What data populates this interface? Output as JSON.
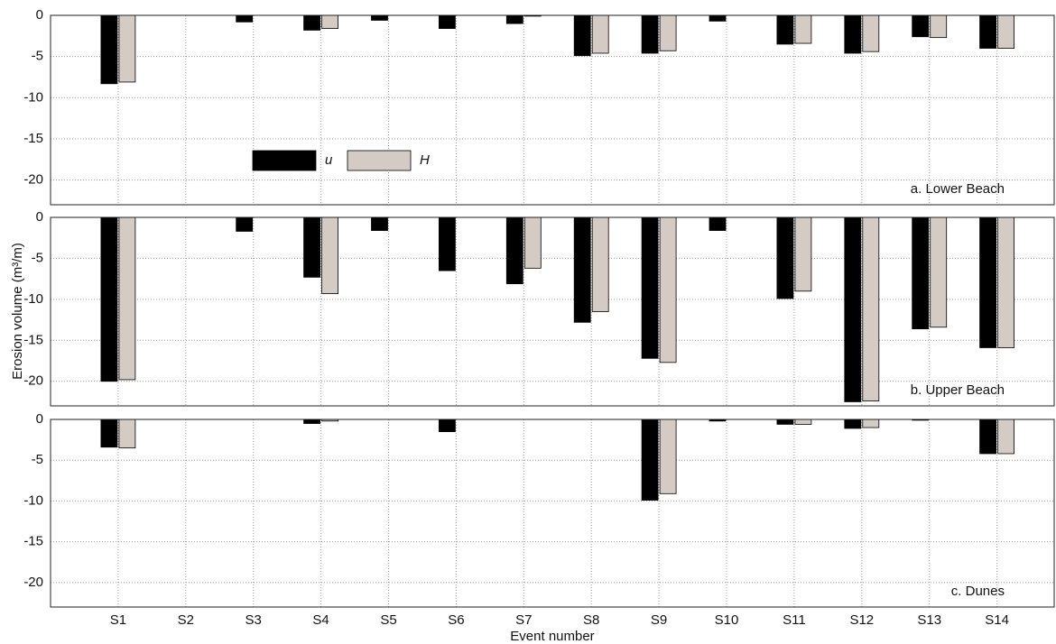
{
  "chart_data": [
    {
      "type": "bar",
      "title": "a. Lower Beach",
      "series": [
        {
          "name": "u",
          "color": "#000000",
          "values": [
            -8.3,
            0,
            -0.8,
            -1.8,
            -0.6,
            -1.6,
            -1.0,
            -4.9,
            -4.6,
            -0.7,
            -3.5,
            -4.6,
            -2.6,
            -4.0
          ]
        },
        {
          "name": "H",
          "color": "#d4ccc4",
          "values": [
            -8.1,
            0,
            0,
            -1.6,
            0,
            0,
            -0.1,
            -4.6,
            -4.3,
            0,
            -3.4,
            -4.4,
            -2.7,
            -4.0
          ]
        }
      ],
      "ylim": [
        -23,
        0
      ],
      "yticks": [
        -20,
        -15,
        -10,
        -5,
        0
      ],
      "grid": true,
      "legend": "center-left"
    },
    {
      "type": "bar",
      "title": "b. Upper Beach",
      "ylabel": "Erosion volume (m³/m)",
      "series": [
        {
          "color": "#000000",
          "values": [
            -20.0,
            0,
            -1.7,
            -7.3,
            -1.6,
            -6.5,
            -8.1,
            -12.8,
            -17.2,
            -1.6,
            -9.9,
            -22.5,
            -13.6,
            -15.9
          ]
        },
        {
          "color": "#d4ccc4",
          "values": [
            -19.8,
            0,
            0,
            -9.3,
            0,
            0,
            -6.2,
            -11.5,
            -17.7,
            0,
            -9.0,
            -22.4,
            -13.4,
            -15.9
          ]
        }
      ],
      "ylim": [
        -23,
        0
      ],
      "yticks": [
        -20,
        -15,
        -10,
        -5,
        0
      ],
      "grid": true
    },
    {
      "type": "bar",
      "title": "c. Dunes",
      "xlabel": "Event number",
      "categories": [
        "S1",
        "S2",
        "S3",
        "S4",
        "S5",
        "S6",
        "S7",
        "S8",
        "S9",
        "S10",
        "S11",
        "S12",
        "S13",
        "S14"
      ],
      "series": [
        {
          "color": "#000000",
          "values": [
            -3.4,
            0,
            0,
            -0.5,
            0,
            -1.5,
            0,
            0,
            -9.9,
            -0.2,
            -0.6,
            -1.1,
            -0.1,
            -4.2
          ]
        },
        {
          "color": "#d4ccc4",
          "values": [
            -3.5,
            0,
            0,
            -0.2,
            0,
            0,
            0,
            0,
            -9.1,
            0,
            -0.6,
            -1.0,
            0,
            -4.2
          ]
        }
      ],
      "ylim": [
        -23,
        0
      ],
      "yticks": [
        -20,
        -15,
        -10,
        -5,
        0
      ],
      "grid": true
    }
  ]
}
